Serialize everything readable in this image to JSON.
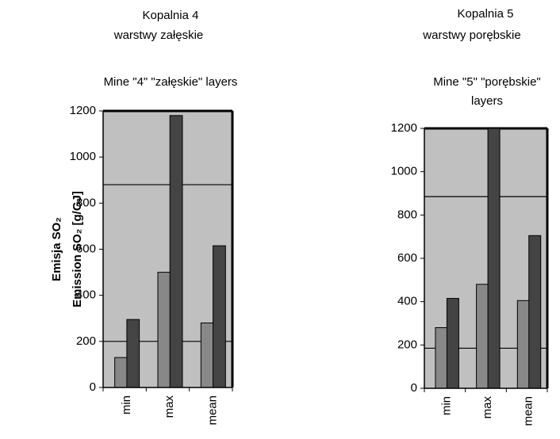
{
  "chart_data": [
    {
      "type": "bar",
      "title": "Kopalnia 4",
      "subtitle": "warstwy załęskie",
      "title_en": [
        "Mine \"4\" \"załęskie\" layers"
      ],
      "ylabel": [
        "Emisja SO₂",
        "Emission SO₂  [g/GJ]"
      ],
      "categories": [
        "min",
        "max",
        "mean"
      ],
      "series": [
        {
          "color": "#888888",
          "values": [
            130,
            500,
            280
          ]
        },
        {
          "color": "#444444",
          "values": [
            295,
            1180,
            615
          ]
        }
      ],
      "ref_lines": [
        880,
        200
      ],
      "ylim": [
        0,
        1200
      ],
      "yticks": [
        0,
        200,
        400,
        600,
        800,
        1000,
        1200
      ]
    },
    {
      "type": "bar",
      "title": "Kopalnia 5",
      "subtitle": "warstwy porębskie",
      "title_en": [
        "Mine \"5\" \"porębskie\"",
        "layers"
      ],
      "categories": [
        "min",
        "max",
        "mean"
      ],
      "series": [
        {
          "color": "#888888",
          "values": [
            280,
            480,
            405
          ]
        },
        {
          "color": "#444444",
          "values": [
            415,
            1200,
            705
          ]
        }
      ],
      "ref_lines": [
        885,
        185
      ],
      "ylim": [
        0,
        1200
      ],
      "yticks": [
        0,
        200,
        400,
        600,
        800,
        1000,
        1200
      ]
    }
  ]
}
